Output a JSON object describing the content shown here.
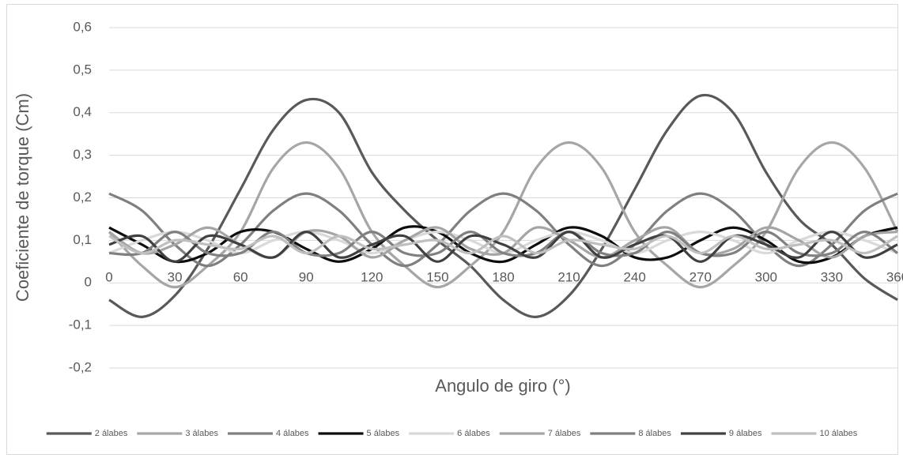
{
  "chart_data": {
    "type": "line",
    "x_label": "Angulo de giro (°)",
    "y_label": "Coeficiente de torque (Cm)",
    "x": [
      0,
      15,
      30,
      45,
      60,
      75,
      90,
      105,
      120,
      135,
      150,
      165,
      180,
      195,
      210,
      225,
      240,
      255,
      270,
      285,
      300,
      315,
      330,
      345,
      360
    ],
    "xlim": [
      0,
      360
    ],
    "xticks": [
      0,
      30,
      60,
      90,
      120,
      150,
      180,
      210,
      240,
      270,
      300,
      330,
      360
    ],
    "ylim": [
      -0.2,
      0.6
    ],
    "yticks": [
      {
        "value": -0.2,
        "label": "-0,2"
      },
      {
        "value": -0.1,
        "label": "-0,1"
      },
      0,
      {
        "value": 0.1,
        "label": "0,1"
      },
      {
        "value": 0.2,
        "label": "0,2"
      },
      {
        "value": 0.3,
        "label": "0,3"
      },
      {
        "value": 0.4,
        "label": "0,4"
      },
      {
        "value": 0.5,
        "label": "0,5"
      },
      {
        "value": 0.6,
        "label": "0,6"
      }
    ],
    "grid": true,
    "legend": "bottom",
    "series": [
      {
        "name": "2 álabes",
        "color": "#595959",
        "values": [
          -0.04,
          -0.08,
          -0.03,
          0.08,
          0.22,
          0.36,
          0.43,
          0.4,
          0.26,
          0.17,
          0.1,
          0.04,
          -0.04,
          -0.08,
          -0.03,
          0.08,
          0.22,
          0.36,
          0.44,
          0.4,
          0.26,
          0.15,
          0.09,
          0.01,
          -0.04
        ]
      },
      {
        "name": "3 álabes",
        "color": "#a6a6a6",
        "values": [
          0.12,
          0.04,
          -0.01,
          0.04,
          0.12,
          0.27,
          0.33,
          0.27,
          0.12,
          0.04,
          -0.01,
          0.04,
          0.12,
          0.27,
          0.33,
          0.27,
          0.12,
          0.04,
          -0.01,
          0.04,
          0.12,
          0.27,
          0.33,
          0.27,
          0.12
        ]
      },
      {
        "name": "4 álabes",
        "color": "#7f7f7f",
        "values": [
          0.21,
          0.17,
          0.09,
          0.04,
          0.09,
          0.17,
          0.21,
          0.17,
          0.09,
          0.04,
          0.09,
          0.17,
          0.21,
          0.17,
          0.09,
          0.04,
          0.09,
          0.17,
          0.21,
          0.17,
          0.09,
          0.04,
          0.09,
          0.17,
          0.21
        ]
      },
      {
        "name": "5 álabes",
        "color": "#0d0d0d",
        "values": [
          0.13,
          0.09,
          0.05,
          0.07,
          0.12,
          0.12,
          0.08,
          0.05,
          0.08,
          0.13,
          0.12,
          0.07,
          0.05,
          0.09,
          0.13,
          0.11,
          0.06,
          0.06,
          0.1,
          0.13,
          0.1,
          0.05,
          0.06,
          0.11,
          0.13
        ]
      },
      {
        "name": "6 álabes",
        "color": "#d9d9d9",
        "values": [
          0.07,
          0.1,
          0.12,
          0.1,
          0.07,
          0.1,
          0.12,
          0.1,
          0.07,
          0.1,
          0.12,
          0.1,
          0.07,
          0.1,
          0.12,
          0.1,
          0.07,
          0.1,
          0.12,
          0.1,
          0.07,
          0.1,
          0.12,
          0.1,
          0.07
        ]
      },
      {
        "name": "7 álabes",
        "color": "#a5a5a5",
        "values": [
          0.12,
          0.07,
          0.09,
          0.13,
          0.09,
          0.06,
          0.12,
          0.11,
          0.06,
          0.1,
          0.13,
          0.08,
          0.07,
          0.13,
          0.1,
          0.06,
          0.1,
          0.13,
          0.07,
          0.08,
          0.13,
          0.1,
          0.06,
          0.11,
          0.12
        ]
      },
      {
        "name": "8 álabes",
        "color": "#808080",
        "values": [
          0.07,
          0.07,
          0.12,
          0.07,
          0.07,
          0.12,
          0.07,
          0.07,
          0.12,
          0.07,
          0.07,
          0.12,
          0.07,
          0.07,
          0.12,
          0.07,
          0.07,
          0.12,
          0.07,
          0.07,
          0.12,
          0.07,
          0.07,
          0.12,
          0.07
        ]
      },
      {
        "name": "9 álabes",
        "color": "#404040",
        "values": [
          0.09,
          0.11,
          0.05,
          0.11,
          0.09,
          0.06,
          0.12,
          0.06,
          0.09,
          0.11,
          0.05,
          0.11,
          0.09,
          0.06,
          0.12,
          0.06,
          0.09,
          0.11,
          0.05,
          0.11,
          0.09,
          0.06,
          0.12,
          0.06,
          0.09
        ]
      },
      {
        "name": "10 álabes",
        "color": "#bfbfbf",
        "values": [
          0.11,
          0.07,
          0.1,
          0.09,
          0.08,
          0.11,
          0.07,
          0.11,
          0.08,
          0.09,
          0.1,
          0.07,
          0.11,
          0.07,
          0.1,
          0.09,
          0.08,
          0.11,
          0.07,
          0.11,
          0.08,
          0.09,
          0.1,
          0.07,
          0.11
        ]
      }
    ]
  }
}
